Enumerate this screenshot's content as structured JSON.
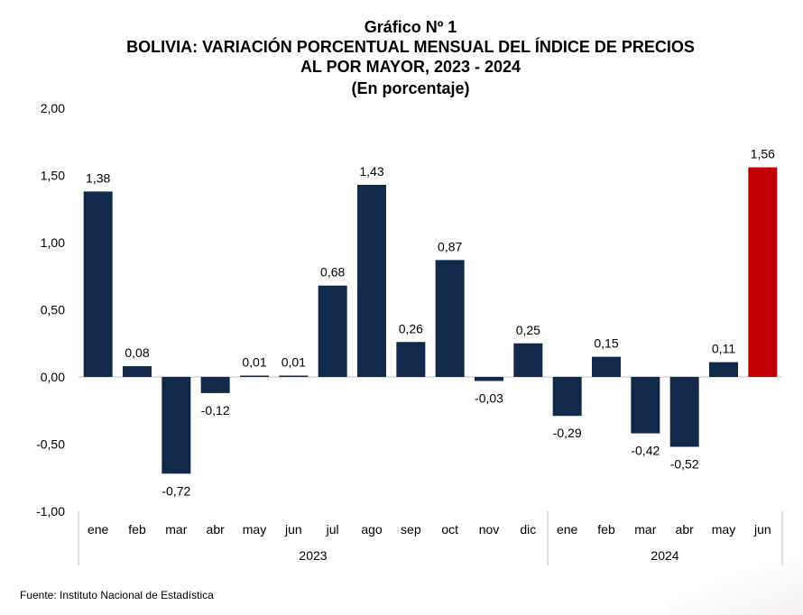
{
  "chart_data": {
    "type": "bar",
    "title": "Gráfico Nº 1",
    "subtitle_lines": [
      "BOLIVIA: VARIACIÓN PORCENTUAL MENSUAL DEL ÍNDICE DE PRECIOS",
      "AL POR MAYOR, 2023 - 2024",
      "(En porcentaje)"
    ],
    "categories": [
      "ene",
      "feb",
      "mar",
      "abr",
      "may",
      "jun",
      "jul",
      "ago",
      "sep",
      "oct",
      "nov",
      "dic",
      "ene",
      "feb",
      "mar",
      "abr",
      "may",
      "jun"
    ],
    "values": [
      1.38,
      0.08,
      -0.72,
      -0.12,
      0.01,
      0.01,
      0.68,
      1.43,
      0.26,
      0.87,
      -0.03,
      0.25,
      -0.29,
      0.15,
      -0.42,
      -0.52,
      0.11,
      1.56
    ],
    "value_labels": [
      "1,38",
      "0,08",
      "-0,72",
      "-0,12",
      "0,01",
      "0,01",
      "0,68",
      "1,43",
      "0,26",
      "0,87",
      "-0,03",
      "0,25",
      "-0,29",
      "0,15",
      "-0,42",
      "-0,52",
      "0,11",
      "1,56"
    ],
    "groups": [
      {
        "label": "2023",
        "count": 12
      },
      {
        "label": "2024",
        "count": 6
      }
    ],
    "ylim": [
      -1.0,
      2.0
    ],
    "yticks": [
      2.0,
      1.5,
      1.0,
      0.5,
      0.0,
      -0.5,
      -1.0
    ],
    "ytick_labels": [
      "2,00",
      "1,50",
      "1,00",
      "0,50",
      "0,00",
      "-0,50",
      "-1,00"
    ],
    "grid": false,
    "colors": {
      "default": "#13294b",
      "highlight": "#c00000"
    },
    "highlight_index": 17
  },
  "source": "Fuente: Instituto Nacional de Estadística"
}
